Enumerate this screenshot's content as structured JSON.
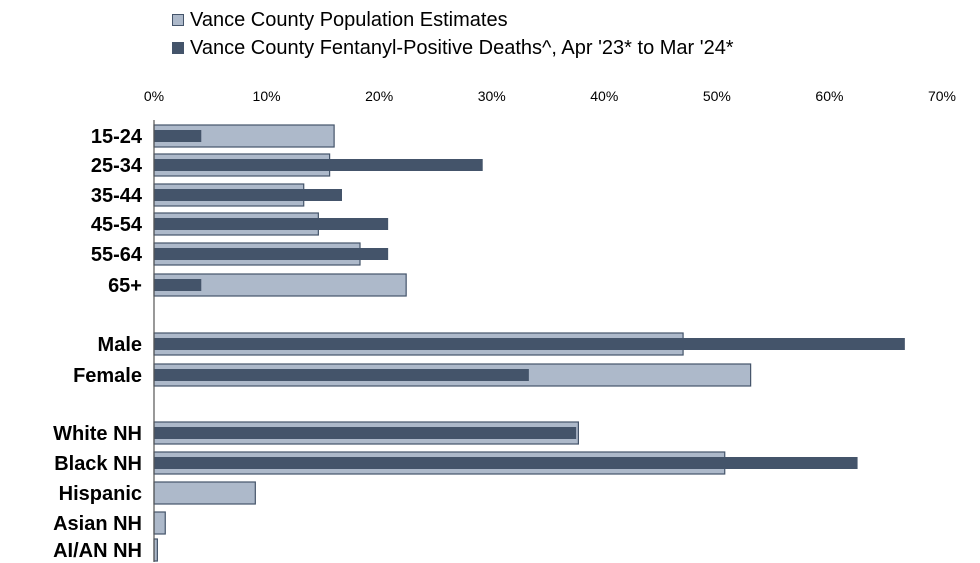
{
  "chart_data": {
    "type": "bar",
    "orientation": "horizontal",
    "xlim": [
      0,
      70
    ],
    "x_ticks": [
      "0%",
      "10%",
      "20%",
      "30%",
      "40%",
      "50%",
      "60%",
      "70%"
    ],
    "tick_values": [
      0,
      10,
      20,
      30,
      40,
      50,
      60,
      70
    ],
    "legend_position": "top",
    "categories": [
      "15-24",
      "25-34",
      "35-44",
      "45-54",
      "55-64",
      "65+",
      "Male",
      "Female",
      "White NH",
      "Black NH",
      "Hispanic",
      "Asian NH",
      "AI/AN NH"
    ],
    "series": [
      {
        "name": "Vance County Population Estimates",
        "color": "#adb9ca",
        "values": [
          16,
          15.6,
          13.3,
          14.6,
          18.3,
          22.4,
          47,
          53,
          37.7,
          50.7,
          9,
          1,
          0.3
        ]
      },
      {
        "name": "Vance County Fentanyl-Positive Deaths^, Apr '23* to Mar '24*",
        "color": "#44546a",
        "values": [
          4.2,
          29.2,
          16.7,
          20.8,
          20.8,
          4.2,
          66.7,
          33.3,
          37.5,
          62.5,
          0,
          0,
          0
        ]
      }
    ]
  }
}
